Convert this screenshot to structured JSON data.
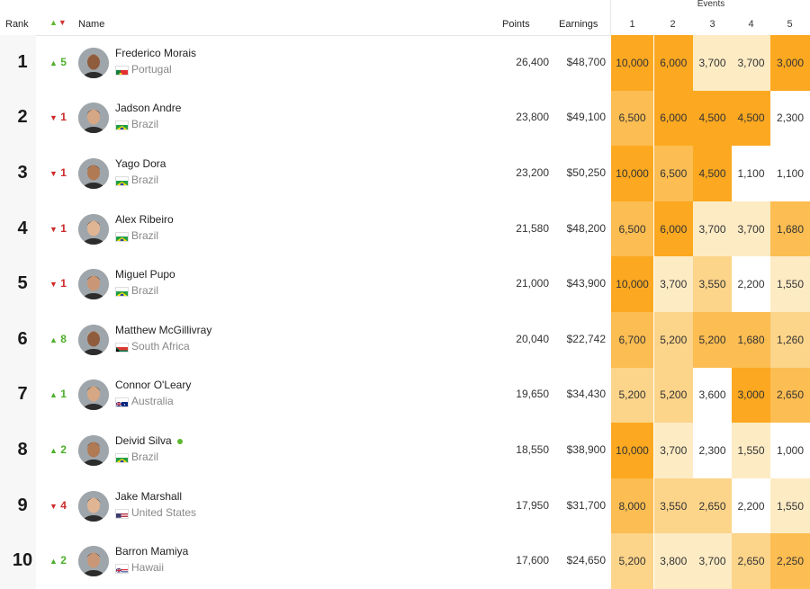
{
  "header": {
    "rank": "Rank",
    "name": "Name",
    "points": "Points",
    "earnings": "Earnings",
    "events": "Events",
    "event_cols": [
      "1",
      "2",
      "3",
      "4",
      "5"
    ]
  },
  "colors": {
    "up": "#4caf2a",
    "down": "#cc2a2a",
    "heat_levels": [
      "#ffffff",
      "#fdebc4",
      "#fcd48a",
      "#fcbd52",
      "#fca820"
    ]
  },
  "rows": [
    {
      "rank": "1",
      "dir": "up",
      "move": "5",
      "name": "Frederico Morais",
      "online": false,
      "country": "Portugal",
      "flag": "portugal-flag-icon",
      "points": "26,400",
      "earnings": "$48,700",
      "events": [
        {
          "v": "10,000",
          "lvl": 4
        },
        {
          "v": "6,000",
          "lvl": 4
        },
        {
          "v": "3,700",
          "lvl": 1
        },
        {
          "v": "3,700",
          "lvl": 1
        },
        {
          "v": "3,000",
          "lvl": 4
        }
      ]
    },
    {
      "rank": "2",
      "dir": "down",
      "move": "1",
      "name": "Jadson Andre",
      "online": false,
      "country": "Brazil",
      "flag": "brazil-flag-icon",
      "points": "23,800",
      "earnings": "$49,100",
      "events": [
        {
          "v": "6,500",
          "lvl": 3
        },
        {
          "v": "6,000",
          "lvl": 4
        },
        {
          "v": "4,500",
          "lvl": 4
        },
        {
          "v": "4,500",
          "lvl": 4
        },
        {
          "v": "2,300",
          "lvl": 0
        }
      ]
    },
    {
      "rank": "3",
      "dir": "down",
      "move": "1",
      "name": "Yago Dora",
      "online": false,
      "country": "Brazil",
      "flag": "brazil-flag-icon",
      "points": "23,200",
      "earnings": "$50,250",
      "events": [
        {
          "v": "10,000",
          "lvl": 4
        },
        {
          "v": "6,500",
          "lvl": 3
        },
        {
          "v": "4,500",
          "lvl": 4
        },
        {
          "v": "1,100",
          "lvl": 0
        },
        {
          "v": "1,100",
          "lvl": 0
        }
      ]
    },
    {
      "rank": "4",
      "dir": "down",
      "move": "1",
      "name": "Alex Ribeiro",
      "online": false,
      "country": "Brazil",
      "flag": "brazil-flag-icon",
      "points": "21,580",
      "earnings": "$48,200",
      "events": [
        {
          "v": "6,500",
          "lvl": 3
        },
        {
          "v": "6,000",
          "lvl": 4
        },
        {
          "v": "3,700",
          "lvl": 1
        },
        {
          "v": "3,700",
          "lvl": 1
        },
        {
          "v": "1,680",
          "lvl": 3
        }
      ]
    },
    {
      "rank": "5",
      "dir": "down",
      "move": "1",
      "name": "Miguel Pupo",
      "online": false,
      "country": "Brazil",
      "flag": "brazil-flag-icon",
      "points": "21,000",
      "earnings": "$43,900",
      "events": [
        {
          "v": "10,000",
          "lvl": 4
        },
        {
          "v": "3,700",
          "lvl": 1
        },
        {
          "v": "3,550",
          "lvl": 2
        },
        {
          "v": "2,200",
          "lvl": 0
        },
        {
          "v": "1,550",
          "lvl": 1
        }
      ]
    },
    {
      "rank": "6",
      "dir": "up",
      "move": "8",
      "name": "Matthew McGillivray",
      "online": false,
      "country": "South Africa",
      "flag": "south-africa-flag-icon",
      "points": "20,040",
      "earnings": "$22,742",
      "events": [
        {
          "v": "6,700",
          "lvl": 3
        },
        {
          "v": "5,200",
          "lvl": 2
        },
        {
          "v": "5,200",
          "lvl": 3
        },
        {
          "v": "1,680",
          "lvl": 3
        },
        {
          "v": "1,260",
          "lvl": 2
        }
      ]
    },
    {
      "rank": "7",
      "dir": "up",
      "move": "1",
      "name": "Connor O'Leary",
      "online": false,
      "country": "Australia",
      "flag": "australia-flag-icon",
      "points": "19,650",
      "earnings": "$34,430",
      "events": [
        {
          "v": "5,200",
          "lvl": 2
        },
        {
          "v": "5,200",
          "lvl": 2
        },
        {
          "v": "3,600",
          "lvl": 0
        },
        {
          "v": "3,000",
          "lvl": 4
        },
        {
          "v": "2,650",
          "lvl": 3
        }
      ]
    },
    {
      "rank": "8",
      "dir": "up",
      "move": "2",
      "name": "Deivid Silva",
      "online": true,
      "country": "Brazil",
      "flag": "brazil-flag-icon",
      "points": "18,550",
      "earnings": "$38,900",
      "events": [
        {
          "v": "10,000",
          "lvl": 4
        },
        {
          "v": "3,700",
          "lvl": 1
        },
        {
          "v": "2,300",
          "lvl": 0
        },
        {
          "v": "1,550",
          "lvl": 1
        },
        {
          "v": "1,000",
          "lvl": 0
        }
      ]
    },
    {
      "rank": "9",
      "dir": "down",
      "move": "4",
      "name": "Jake Marshall",
      "online": false,
      "country": "United States",
      "flag": "usa-flag-icon",
      "points": "17,950",
      "earnings": "$31,700",
      "events": [
        {
          "v": "8,000",
          "lvl": 3
        },
        {
          "v": "3,550",
          "lvl": 2
        },
        {
          "v": "2,650",
          "lvl": 2
        },
        {
          "v": "2,200",
          "lvl": 0
        },
        {
          "v": "1,550",
          "lvl": 1
        }
      ]
    },
    {
      "rank": "10",
      "dir": "up",
      "move": "2",
      "name": "Barron Mamiya",
      "online": false,
      "country": "Hawaii",
      "flag": "hawaii-flag-icon",
      "points": "17,600",
      "earnings": "$24,650",
      "events": [
        {
          "v": "5,200",
          "lvl": 2
        },
        {
          "v": "3,800",
          "lvl": 1
        },
        {
          "v": "3,700",
          "lvl": 1
        },
        {
          "v": "2,650",
          "lvl": 2
        },
        {
          "v": "2,250",
          "lvl": 3
        }
      ]
    }
  ]
}
